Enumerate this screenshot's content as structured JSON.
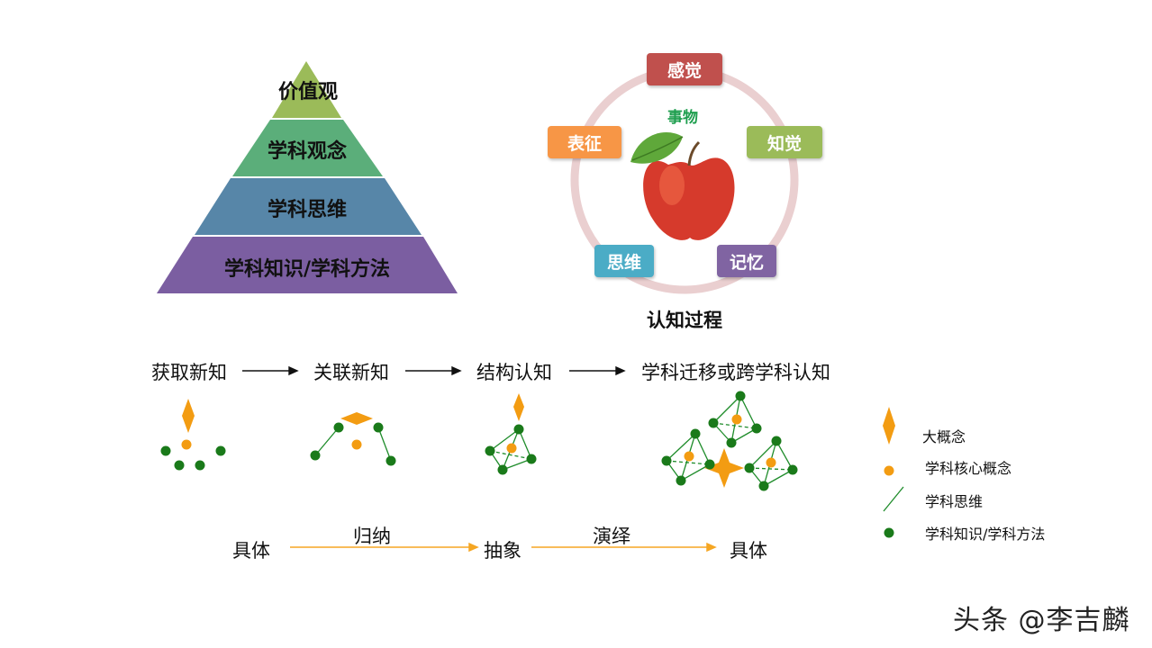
{
  "pyramid": {
    "levels": [
      {
        "label": "价值观",
        "color": "#9BBB59"
      },
      {
        "label": "学科观念",
        "color": "#5BAE7A"
      },
      {
        "label": "学科思维",
        "color": "#5786A8"
      },
      {
        "label": "学科知识/学科方法",
        "color": "#7B5EA1"
      }
    ]
  },
  "cycle": {
    "center_label": "事物",
    "title": "认知过程",
    "steps": [
      {
        "label": "感觉",
        "color": "#C0504D"
      },
      {
        "label": "知觉",
        "color": "#9BBB59"
      },
      {
        "label": "记忆",
        "color": "#8064A2"
      },
      {
        "label": "思维",
        "color": "#4BACC6"
      },
      {
        "label": "表征",
        "color": "#F79646"
      }
    ]
  },
  "progression": {
    "stages": [
      "获取新知",
      "关联新知",
      "结构认知",
      "学科迁移或跨学科认知"
    ]
  },
  "flow": {
    "start": "具体",
    "middle": "抽象",
    "end": "具体",
    "induction": "归纳",
    "deduction": "演绎"
  },
  "legend": {
    "items": [
      {
        "label": "大概念",
        "icon": "diamond-icon",
        "color": "#F39C12"
      },
      {
        "label": "学科核心概念",
        "icon": "orange-dot-icon",
        "color": "#F39C12"
      },
      {
        "label": "学科思维",
        "icon": "green-line-icon",
        "color": "#1E8C2A"
      },
      {
        "label": "学科知识/学科方法",
        "icon": "green-dot-icon",
        "color": "#1A7A1A"
      }
    ]
  },
  "watermark": "头条 @李吉麟"
}
